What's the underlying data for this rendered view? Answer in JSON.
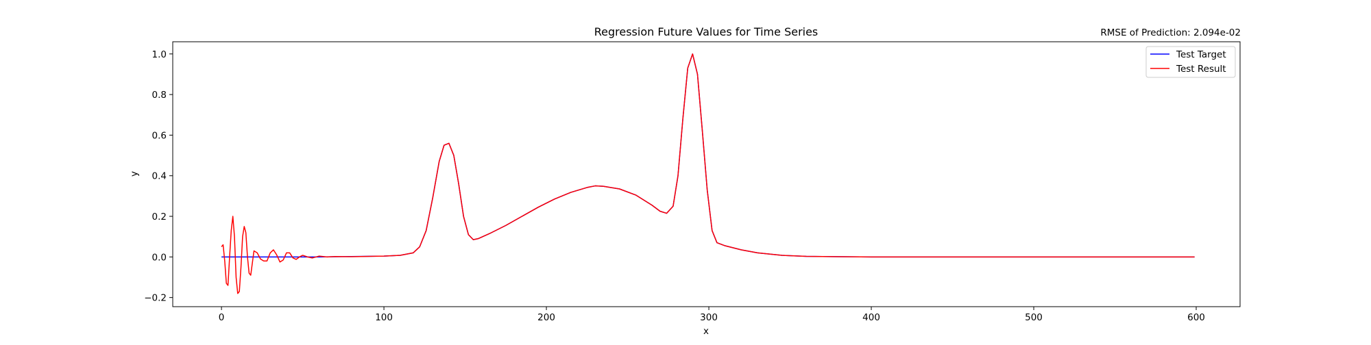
{
  "chart_data": {
    "type": "line",
    "title": "Regression Future Values for Time Series",
    "annotation": "RMSE of Prediction: 2.094e-02",
    "xlabel": "x",
    "ylabel": "y",
    "xlim": [
      -30,
      627
    ],
    "ylim": [
      -0.245,
      1.06
    ],
    "xticks": [
      0,
      100,
      200,
      300,
      400,
      500,
      600
    ],
    "xtick_labels": [
      "0",
      "100",
      "200",
      "300",
      "400",
      "500",
      "600"
    ],
    "yticks": [
      -0.2,
      0.0,
      0.2,
      0.4,
      0.6,
      0.8,
      1.0
    ],
    "ytick_labels": [
      "−0.2",
      "0.0",
      "0.2",
      "0.4",
      "0.6",
      "0.8",
      "1.0"
    ],
    "grid": false,
    "legend_position": "top-right",
    "series": [
      {
        "name": "Test Target",
        "color": "#0000ff",
        "x": [
          0,
          20,
          40,
          60,
          80,
          100,
          110,
          118,
          122,
          126,
          130,
          134,
          137,
          140,
          143,
          146,
          149,
          152,
          155,
          158,
          165,
          175,
          185,
          195,
          205,
          215,
          225,
          230,
          235,
          245,
          255,
          265,
          270,
          274,
          278,
          281,
          284,
          287,
          290,
          293,
          296,
          299,
          302,
          305,
          310,
          320,
          330,
          345,
          360,
          380,
          400,
          450,
          500,
          550,
          599
        ],
        "y": [
          0.0,
          0.0,
          0.0,
          0.0,
          0.002,
          0.004,
          0.008,
          0.02,
          0.05,
          0.13,
          0.29,
          0.47,
          0.55,
          0.56,
          0.5,
          0.36,
          0.2,
          0.11,
          0.085,
          0.09,
          0.115,
          0.155,
          0.2,
          0.245,
          0.285,
          0.318,
          0.342,
          0.35,
          0.348,
          0.335,
          0.305,
          0.255,
          0.225,
          0.215,
          0.25,
          0.4,
          0.68,
          0.93,
          1.0,
          0.9,
          0.62,
          0.33,
          0.13,
          0.07,
          0.055,
          0.035,
          0.02,
          0.008,
          0.003,
          0.001,
          0.0,
          0.0,
          0.0,
          0.0,
          0.0
        ]
      },
      {
        "name": "Test Result",
        "color": "#ff0000",
        "x": [
          0,
          1,
          2,
          3,
          4,
          5,
          6,
          7,
          8,
          9,
          10,
          11,
          12,
          13,
          14,
          15,
          16,
          17,
          18,
          19,
          20,
          22,
          24,
          26,
          28,
          30,
          32,
          34,
          36,
          38,
          40,
          42,
          44,
          46,
          48,
          50,
          53,
          56,
          60,
          65,
          70,
          80,
          100,
          110,
          118,
          122,
          126,
          130,
          134,
          137,
          140,
          143,
          146,
          149,
          152,
          155,
          158,
          165,
          175,
          185,
          195,
          205,
          215,
          225,
          230,
          235,
          245,
          255,
          265,
          270,
          274,
          278,
          281,
          284,
          287,
          290,
          293,
          296,
          299,
          302,
          305,
          310,
          320,
          330,
          345,
          360,
          380,
          400,
          450,
          500,
          550,
          599
        ],
        "y": [
          0.05,
          0.06,
          -0.02,
          -0.13,
          -0.14,
          0.0,
          0.13,
          0.2,
          0.1,
          -0.1,
          -0.18,
          -0.17,
          -0.05,
          0.1,
          0.15,
          0.12,
          0.0,
          -0.08,
          -0.09,
          -0.03,
          0.03,
          0.02,
          -0.01,
          -0.02,
          -0.02,
          0.02,
          0.035,
          0.01,
          -0.025,
          -0.015,
          0.02,
          0.02,
          -0.005,
          -0.012,
          0.0,
          0.008,
          0.0,
          -0.005,
          0.004,
          0.0,
          0.002,
          0.001,
          0.004,
          0.008,
          0.02,
          0.05,
          0.13,
          0.29,
          0.47,
          0.55,
          0.56,
          0.5,
          0.36,
          0.2,
          0.11,
          0.085,
          0.09,
          0.115,
          0.155,
          0.2,
          0.245,
          0.285,
          0.318,
          0.342,
          0.35,
          0.348,
          0.335,
          0.305,
          0.255,
          0.225,
          0.215,
          0.25,
          0.4,
          0.68,
          0.93,
          1.0,
          0.9,
          0.62,
          0.33,
          0.13,
          0.07,
          0.055,
          0.035,
          0.02,
          0.008,
          0.003,
          0.001,
          0.0,
          0.0,
          0.0,
          0.0,
          0.0
        ]
      }
    ]
  }
}
